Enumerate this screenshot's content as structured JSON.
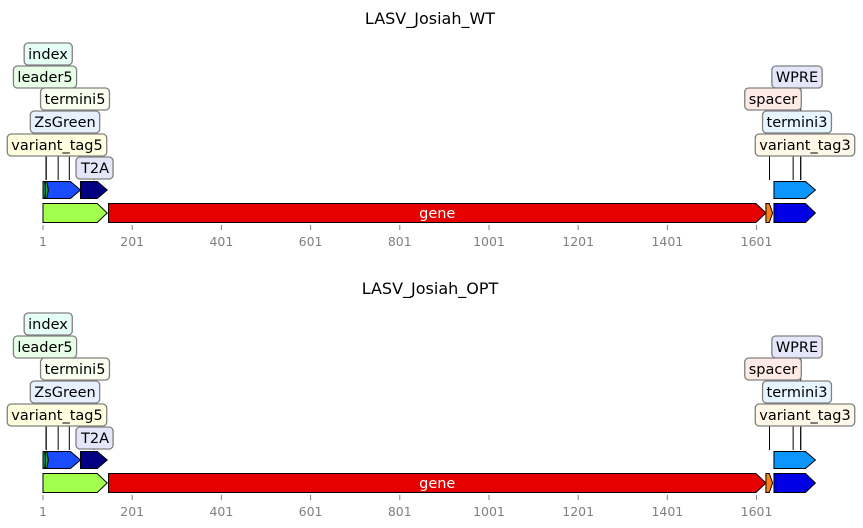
{
  "panels": [
    {
      "title": "LASV_Josiah_WT",
      "axis": {
        "min": 1,
        "max": 1741,
        "ticks": [
          1,
          201,
          401,
          601,
          801,
          1001,
          1201,
          1401,
          1601
        ]
      },
      "features": [
        {
          "name": "gene",
          "start": 148,
          "end": 1622,
          "color": "#e60000",
          "inner_label": "gene"
        },
        {
          "start": 1,
          "end": 145,
          "color": "#a3ff4d"
        },
        {
          "start": 1622,
          "end": 1637,
          "color": "#ff7f0e"
        },
        {
          "start": 1640,
          "end": 1733,
          "color": "#0000e6"
        },
        {
          "start": 1640,
          "end": 1733,
          "color": "#0a95ff"
        },
        {
          "start": 3,
          "end": 85,
          "color": "#1a4cff"
        },
        {
          "start": 85,
          "end": 145,
          "color": "#000080"
        },
        {
          "start": 1,
          "end": 8,
          "color": "#0aa0a0"
        },
        {
          "start": 6,
          "end": 13,
          "color": "#2ca02c"
        }
      ],
      "labels": [
        {
          "text": "index",
          "bg": "#e6fff5",
          "pos": 8
        },
        {
          "text": "leader5",
          "bg": "#e6ffe6",
          "pos": 8
        },
        {
          "text": "termini5",
          "bg": "#fafff0",
          "pos": 35
        },
        {
          "text": "ZsGreen",
          "bg": "#e6f0ff",
          "pos": 60
        },
        {
          "text": "variant_tag5",
          "bg": "#ffffe0",
          "pos": 8
        },
        {
          "text": "T2A",
          "bg": "#e6e6fa",
          "pos": 115
        },
        {
          "text": "WPRE",
          "bg": "#e6e6fa",
          "pos": 1700
        },
        {
          "text": "spacer",
          "bg": "#ffebe6",
          "pos": 1630
        },
        {
          "text": "termini3",
          "bg": "#e6f5ff",
          "pos": 1683
        },
        {
          "text": "variant_tag3",
          "bg": "#fff8e6",
          "pos": 1700
        }
      ]
    },
    {
      "title": "LASV_Josiah_OPT",
      "axis": {
        "min": 1,
        "max": 1741,
        "ticks": [
          1,
          201,
          401,
          601,
          801,
          1001,
          1201,
          1401,
          1601
        ]
      },
      "features": [
        {
          "name": "gene",
          "start": 148,
          "end": 1622,
          "color": "#e60000",
          "inner_label": "gene"
        },
        {
          "start": 1,
          "end": 145,
          "color": "#a3ff4d"
        },
        {
          "start": 1622,
          "end": 1637,
          "color": "#ff7f0e"
        },
        {
          "start": 1640,
          "end": 1733,
          "color": "#0000e6"
        },
        {
          "start": 1640,
          "end": 1733,
          "color": "#0a95ff"
        },
        {
          "start": 3,
          "end": 85,
          "color": "#1a4cff"
        },
        {
          "start": 85,
          "end": 145,
          "color": "#000080"
        },
        {
          "start": 1,
          "end": 8,
          "color": "#0aa0a0"
        },
        {
          "start": 6,
          "end": 13,
          "color": "#2ca02c"
        }
      ],
      "labels": [
        {
          "text": "index",
          "bg": "#e6fff5",
          "pos": 8
        },
        {
          "text": "leader5",
          "bg": "#e6ffe6",
          "pos": 8
        },
        {
          "text": "termini5",
          "bg": "#fafff0",
          "pos": 35
        },
        {
          "text": "ZsGreen",
          "bg": "#e6f0ff",
          "pos": 60
        },
        {
          "text": "variant_tag5",
          "bg": "#ffffe0",
          "pos": 8
        },
        {
          "text": "T2A",
          "bg": "#e6e6fa",
          "pos": 115
        },
        {
          "text": "WPRE",
          "bg": "#e6e6fa",
          "pos": 1700
        },
        {
          "text": "spacer",
          "bg": "#ffebe6",
          "pos": 1630
        },
        {
          "text": "termini3",
          "bg": "#e6f5ff",
          "pos": 1683
        },
        {
          "text": "variant_tag3",
          "bg": "#fff8e6",
          "pos": 1700
        }
      ]
    }
  ]
}
